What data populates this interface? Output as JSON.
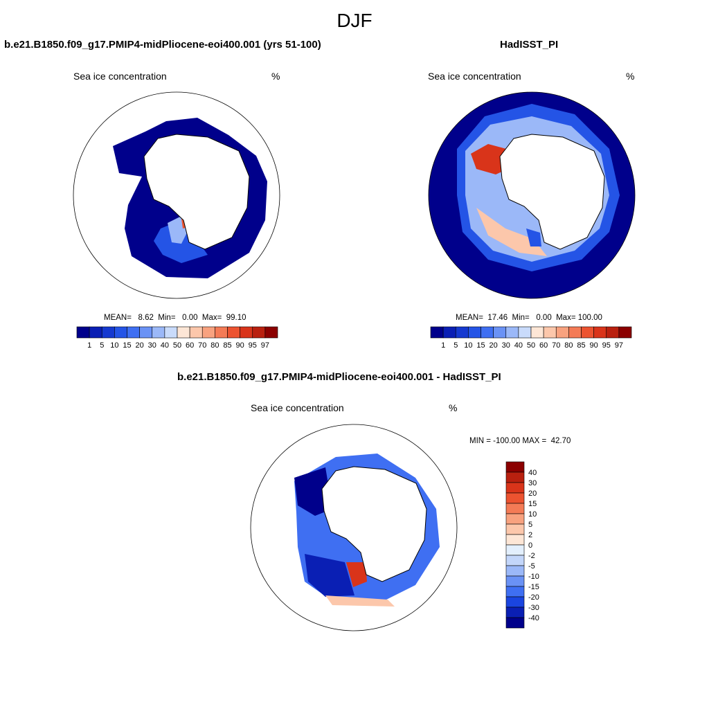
{
  "figure": {
    "season": "DJF",
    "panels": {
      "model": {
        "title": "b.e21.B1850.f09_g17.PMIP4-midPliocene-eoi400.001 (yrs 51-100)",
        "variable": "Sea ice concentration",
        "units": "%",
        "stats": "MEAN=   8.62  Min=   0.00  Max=  99.10"
      },
      "obs": {
        "title": "HadISST_PI",
        "variable": "Sea ice concentration",
        "units": "%",
        "stats": "MEAN=  17.46  Min=   0.00  Max= 100.00"
      },
      "diff": {
        "title": "b.e21.B1850.f09_g17.PMIP4-midPliocene-eoi400.001 - HadISST_PI",
        "variable": "Sea ice concentration",
        "units": "%",
        "stats": "MIN = -100.00 MAX =  42.70"
      }
    }
  },
  "chart_data": [
    {
      "type": "heatmap",
      "projection": "south-polar-stereographic",
      "title": "b.e21.B1850.f09_g17.PMIP4-midPliocene-eoi400.001 (yrs 51-100)",
      "variable": "Sea ice concentration",
      "units": "%",
      "mean": 8.62,
      "min": 0.0,
      "max": 99.1,
      "colorbar_levels": [
        "1",
        "5",
        "10",
        "15",
        "20",
        "30",
        "40",
        "50",
        "60",
        "70",
        "80",
        "85",
        "90",
        "95",
        "97"
      ],
      "colorbar_colors": [
        "#00008b",
        "#0a1fb4",
        "#1539d0",
        "#2454e6",
        "#3f6ff2",
        "#6a92f5",
        "#9bb8f8",
        "#c9dbfb",
        "#fde6d6",
        "#fcc7ab",
        "#f8a27f",
        "#f47b56",
        "#ec5330",
        "#d9341a",
        "#b9200f",
        "#8b0000"
      ]
    },
    {
      "type": "heatmap",
      "projection": "south-polar-stereographic",
      "title": "HadISST_PI",
      "variable": "Sea ice concentration",
      "units": "%",
      "mean": 17.46,
      "min": 0.0,
      "max": 100.0,
      "colorbar_levels": [
        "1",
        "5",
        "10",
        "15",
        "20",
        "30",
        "40",
        "50",
        "60",
        "70",
        "80",
        "85",
        "90",
        "95",
        "97"
      ],
      "colorbar_colors": [
        "#00008b",
        "#0a1fb4",
        "#1539d0",
        "#2454e6",
        "#3f6ff2",
        "#6a92f5",
        "#9bb8f8",
        "#c9dbfb",
        "#fde6d6",
        "#fcc7ab",
        "#f8a27f",
        "#f47b56",
        "#ec5330",
        "#d9341a",
        "#b9200f",
        "#8b0000"
      ]
    },
    {
      "type": "heatmap",
      "projection": "south-polar-stereographic",
      "title": "b.e21.B1850.f09_g17.PMIP4-midPliocene-eoi400.001 - HadISST_PI",
      "variable": "Sea ice concentration",
      "units": "%",
      "min": -100.0,
      "max": 42.7,
      "colorbar_levels": [
        "40",
        "30",
        "20",
        "15",
        "10",
        "5",
        "2",
        "0",
        "-2",
        "-5",
        "-10",
        "-15",
        "-20",
        "-30",
        "-40"
      ],
      "colorbar_colors": [
        "#8b0000",
        "#b9200f",
        "#d9341a",
        "#ec5330",
        "#f47b56",
        "#f8a27f",
        "#fcc7ab",
        "#fde6d6",
        "#e3effd",
        "#c3d6fa",
        "#9bb8f8",
        "#6a92f5",
        "#3f6ff2",
        "#1a45e0",
        "#0a1fb4",
        "#00008b"
      ]
    }
  ]
}
